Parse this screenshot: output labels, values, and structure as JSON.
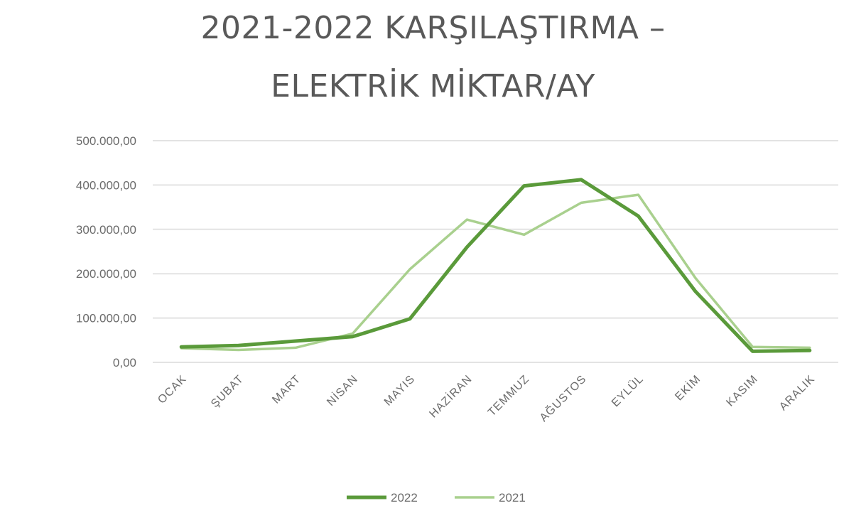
{
  "chart_data": {
    "type": "line",
    "title_lines": [
      "2021-2022 KARŞILAŞTIRMA –",
      "ELEKTRİK MİKTAR/AY"
    ],
    "xlabel": "",
    "ylabel": "",
    "categories": [
      "OCAK",
      "ŞUBAT",
      "MART",
      "NİSAN",
      "MAYIS",
      "HAZİRAN",
      "TEMMUZ",
      "AĞUSTOS",
      "EYLÜL",
      "EKİM",
      "KASIM",
      "ARALIK"
    ],
    "ylim": [
      0,
      500000
    ],
    "yticks": [
      0,
      100000,
      200000,
      300000,
      400000,
      500000
    ],
    "ytick_labels": [
      "0,00",
      "100.000,00",
      "200.000,00",
      "300.000,00",
      "400.000,00",
      "500.000,00"
    ],
    "grid": true,
    "legend_position": "bottom",
    "series": [
      {
        "name": "2022",
        "color": "#5a9a3a",
        "values": [
          35000,
          38000,
          48000,
          58000,
          98000,
          260000,
          398000,
          412000,
          330000,
          160000,
          25000,
          27000
        ]
      },
      {
        "name": "2021",
        "color": "#a9d08e",
        "values": [
          32000,
          28000,
          33000,
          65000,
          210000,
          322000,
          288000,
          360000,
          378000,
          190000,
          35000,
          33000
        ]
      }
    ]
  }
}
